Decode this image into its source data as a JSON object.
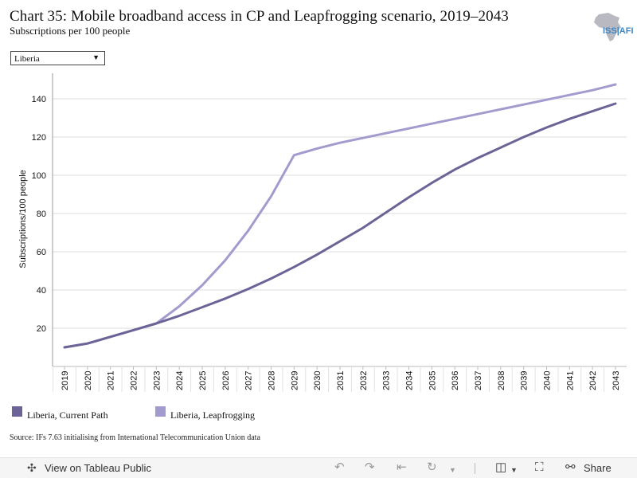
{
  "header": {
    "title": "Chart 35: Mobile broadband access in CP and Leapfrogging scenario, 2019–2043",
    "subtitle": "Subscriptions per 100 people",
    "logo_text": "ISS AFRICA"
  },
  "filter": {
    "selected": "Liberia",
    "arrow_icon": "dropdown-arrow-icon"
  },
  "chart_data": {
    "type": "line",
    "title": "Chart 35: Mobile broadband access in CP and Leapfrogging scenario, 2019–2043",
    "subtitle": "Subscriptions per 100 people",
    "xlabel": "",
    "ylabel": "Subscriptions/100 people",
    "x": [
      2019,
      2020,
      2021,
      2022,
      2023,
      2024,
      2025,
      2026,
      2027,
      2028,
      2029,
      2030,
      2031,
      2032,
      2033,
      2034,
      2035,
      2036,
      2037,
      2038,
      2039,
      2040,
      2041,
      2042,
      2043
    ],
    "x_labels": [
      "2019",
      "2020",
      "2021",
      "2022",
      "2023",
      "2024",
      "2025",
      "2026",
      "2027",
      "2028",
      "2029",
      "2030",
      "2031",
      "2032",
      "2033",
      "2034",
      "2035",
      "2036",
      "2037",
      "2038",
      "2039",
      "2040",
      "2041",
      "2042",
      "2043"
    ],
    "ylim": [
      0,
      154
    ],
    "yticks": [
      20,
      40,
      60,
      80,
      100,
      120,
      140
    ],
    "grid": true,
    "legend": "bottom",
    "series": [
      {
        "name": "Liberia, Current Path",
        "color": "#6c6496",
        "values": [
          10,
          12,
          15.5,
          19,
          22.5,
          26.5,
          31,
          35.5,
          40.5,
          46,
          52,
          58.5,
          65.5,
          72.5,
          80.5,
          88.5,
          96,
          103,
          109,
          114.5,
          120,
          125,
          129.5,
          133.5,
          137.5
        ]
      },
      {
        "name": "Liberia, Leapfrogging",
        "color": "#a29cce",
        "values": [
          10,
          12,
          15.5,
          19,
          22.5,
          31.5,
          42.5,
          55.5,
          71,
          89,
          110.5,
          114,
          117,
          119.5,
          122,
          124.5,
          127,
          129.5,
          132,
          134.5,
          137,
          139.5,
          142,
          144.5,
          147.5
        ]
      }
    ]
  },
  "source": "Source: IFs 7.63 initialising from International Telecommunication Union data",
  "toolbar": {
    "view_label": "View on Tableau Public",
    "share_label": "Share"
  }
}
